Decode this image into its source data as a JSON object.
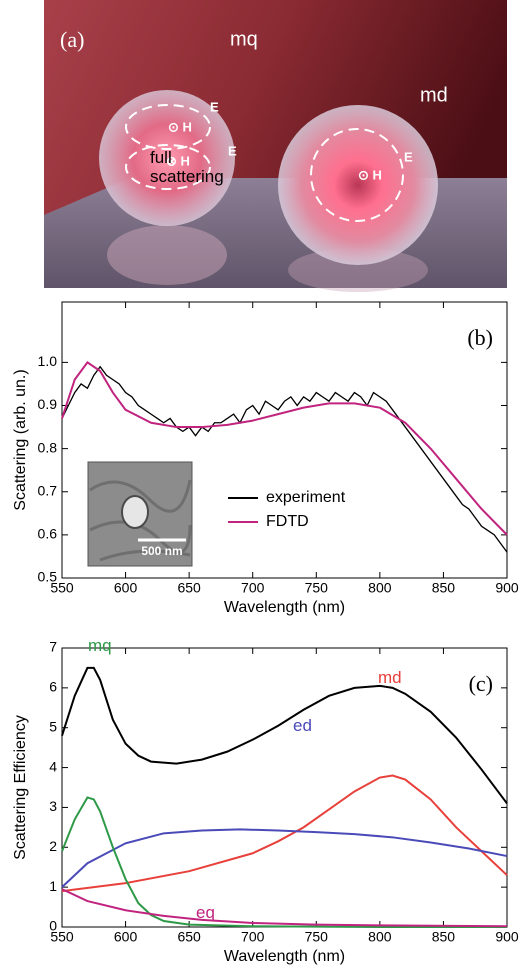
{
  "image": {
    "panel_label": "(a)",
    "labels": [
      "mq",
      "md",
      "E",
      "E",
      "E",
      "⊙ H",
      "⊗ H",
      "⊙ H"
    ]
  },
  "chart_data": [
    {
      "type": "line",
      "panel_label": "(b)",
      "xlabel": "Wavelength (nm)",
      "ylabel": "Scattering (arb. un.)",
      "xlim": [
        550,
        900
      ],
      "xticks": [
        550,
        600,
        650,
        700,
        750,
        800,
        850,
        900
      ],
      "ylim": [
        0.5,
        1.14
      ],
      "yticks": [
        0.5,
        0.6,
        0.7,
        0.8,
        0.9,
        {
          "value": 1,
          "label": "1.0"
        }
      ],
      "inset_label": "500 nm",
      "legend": "lower-center",
      "series": [
        {
          "name": "experiment",
          "color": "#000000",
          "x": [
            550,
            555,
            560,
            565,
            570,
            575,
            580,
            585,
            590,
            595,
            600,
            605,
            610,
            615,
            620,
            625,
            630,
            635,
            640,
            645,
            650,
            655,
            660,
            665,
            670,
            675,
            680,
            685,
            690,
            695,
            700,
            705,
            710,
            715,
            720,
            725,
            730,
            735,
            740,
            745,
            750,
            755,
            760,
            765,
            770,
            775,
            780,
            785,
            790,
            795,
            800,
            805,
            810,
            815,
            820,
            825,
            830,
            835,
            840,
            845,
            850,
            855,
            860,
            865,
            870,
            875,
            880,
            885,
            890,
            895,
            900
          ],
          "values": [
            0.87,
            0.9,
            0.93,
            0.95,
            0.94,
            0.97,
            0.99,
            0.97,
            0.96,
            0.95,
            0.93,
            0.92,
            0.9,
            0.89,
            0.88,
            0.87,
            0.86,
            0.87,
            0.85,
            0.84,
            0.85,
            0.83,
            0.85,
            0.84,
            0.86,
            0.86,
            0.87,
            0.88,
            0.86,
            0.89,
            0.9,
            0.88,
            0.91,
            0.9,
            0.89,
            0.91,
            0.92,
            0.9,
            0.92,
            0.91,
            0.93,
            0.92,
            0.91,
            0.93,
            0.92,
            0.91,
            0.93,
            0.92,
            0.9,
            0.93,
            0.92,
            0.91,
            0.89,
            0.87,
            0.85,
            0.83,
            0.81,
            0.79,
            0.77,
            0.75,
            0.73,
            0.71,
            0.69,
            0.67,
            0.66,
            0.64,
            0.62,
            0.61,
            0.6,
            0.58,
            0.56
          ]
        },
        {
          "name": "FDTD",
          "color": "#c0247f",
          "x": [
            550,
            560,
            570,
            580,
            590,
            600,
            620,
            640,
            660,
            680,
            700,
            720,
            740,
            760,
            780,
            800,
            820,
            840,
            860,
            880,
            900
          ],
          "values": [
            0.87,
            0.96,
            1.0,
            0.98,
            0.93,
            0.89,
            0.86,
            0.85,
            0.85,
            0.855,
            0.865,
            0.88,
            0.895,
            0.905,
            0.905,
            0.895,
            0.86,
            0.8,
            0.73,
            0.66,
            0.6
          ]
        }
      ]
    },
    {
      "type": "line",
      "panel_label": "(c)",
      "xlabel": "Wavelength (nm)",
      "ylabel": "Scattering Efficiency",
      "xlim": [
        550,
        900
      ],
      "xticks": [
        550,
        600,
        650,
        700,
        750,
        800,
        850,
        900
      ],
      "ylim": [
        0,
        7
      ],
      "yticks": [
        0,
        1,
        2,
        3,
        4,
        5,
        6,
        7
      ],
      "series": [
        {
          "name": "full scattering",
          "color": "#000000",
          "x": [
            550,
            560,
            570,
            575,
            580,
            590,
            600,
            610,
            620,
            640,
            660,
            680,
            700,
            720,
            740,
            760,
            780,
            800,
            810,
            820,
            840,
            860,
            880,
            900
          ],
          "values": [
            4.8,
            5.8,
            6.5,
            6.5,
            6.2,
            5.2,
            4.6,
            4.3,
            4.15,
            4.1,
            4.2,
            4.4,
            4.7,
            5.05,
            5.45,
            5.8,
            6.0,
            6.05,
            6.0,
            5.85,
            5.4,
            4.75,
            3.95,
            3.1
          ]
        },
        {
          "name": "md",
          "color": "#e8403a",
          "x": [
            550,
            600,
            650,
            700,
            720,
            740,
            760,
            780,
            800,
            810,
            820,
            840,
            860,
            880,
            900
          ],
          "values": [
            0.9,
            1.1,
            1.4,
            1.85,
            2.15,
            2.5,
            2.95,
            3.4,
            3.75,
            3.8,
            3.7,
            3.2,
            2.5,
            1.9,
            1.3
          ]
        },
        {
          "name": "ed",
          "color": "#4a4ab8",
          "x": [
            550,
            570,
            600,
            630,
            660,
            690,
            720,
            750,
            780,
            810,
            840,
            870,
            900
          ],
          "values": [
            1.0,
            1.6,
            2.1,
            2.35,
            2.42,
            2.45,
            2.42,
            2.38,
            2.33,
            2.25,
            2.12,
            1.97,
            1.78
          ]
        },
        {
          "name": "mq",
          "color": "#2e9a48",
          "x": [
            550,
            560,
            570,
            575,
            580,
            590,
            600,
            610,
            620,
            630,
            650,
            700,
            800,
            900
          ],
          "values": [
            1.9,
            2.7,
            3.25,
            3.2,
            2.9,
            2.0,
            1.2,
            0.6,
            0.3,
            0.15,
            0.06,
            0.02,
            0,
            0
          ]
        },
        {
          "name": "eq",
          "color": "#c0247f",
          "x": [
            550,
            570,
            600,
            630,
            660,
            700,
            750,
            800,
            900
          ],
          "values": [
            0.95,
            0.65,
            0.42,
            0.28,
            0.18,
            0.1,
            0.06,
            0.04,
            0.02
          ]
        }
      ]
    }
  ]
}
